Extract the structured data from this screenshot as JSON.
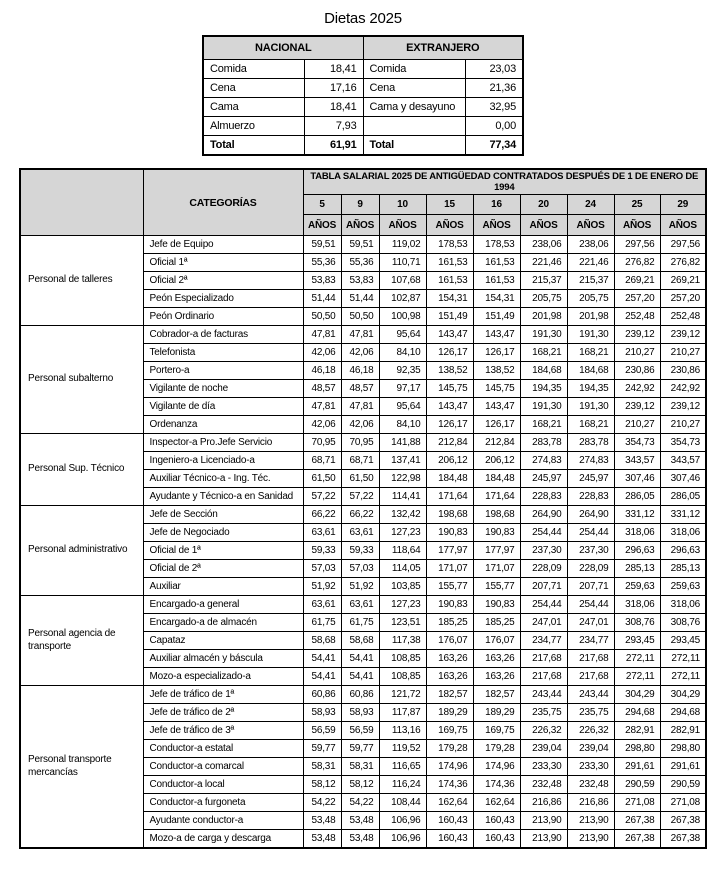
{
  "colors": {
    "header_bg": "#d6d6d6",
    "border": "#000000",
    "page_bg": "#ffffff"
  },
  "dietas": {
    "title": "Dietas 2025",
    "columns": [
      "NACIONAL",
      "EXTRANJERO"
    ],
    "rows": [
      {
        "nacional_label": "Comida",
        "nacional_value": "18,41",
        "extranjero_label": "Comida",
        "extranjero_value": "23,03"
      },
      {
        "nacional_label": "Cena",
        "nacional_value": "17,16",
        "extranjero_label": "Cena",
        "extranjero_value": "21,36"
      },
      {
        "nacional_label": "Cama",
        "nacional_value": "18,41",
        "extranjero_label": "Cama y desayuno",
        "extranjero_value": "32,95"
      },
      {
        "nacional_label": "Almuerzo",
        "nacional_value": "7,93",
        "extranjero_label": "",
        "extranjero_value": "0,00"
      }
    ],
    "total": {
      "nacional_label": "Total",
      "nacional_value": "61,91",
      "extranjero_label": "Total",
      "extranjero_value": "77,34"
    }
  },
  "salary_table": {
    "title": "TABLA SALARIAL 2025 DE ANTIGÜEDAD CONTRATADOS DESPUÉS DE 1 DE ENERO DE 1994",
    "categories_header": "CATEGORÍAS",
    "year_values": [
      "5",
      "9",
      "10",
      "15",
      "16",
      "20",
      "24",
      "25",
      "29"
    ],
    "year_label": "AÑOS",
    "groups": [
      {
        "name": "Personal de talleres",
        "rows": [
          {
            "category": "Jefe de Equipo",
            "values": [
              "59,51",
              "59,51",
              "119,02",
              "178,53",
              "178,53",
              "238,06",
              "238,06",
              "297,56",
              "297,56"
            ]
          },
          {
            "category": "Oficial 1ª",
            "values": [
              "55,36",
              "55,36",
              "110,71",
              "161,53",
              "161,53",
              "221,46",
              "221,46",
              "276,82",
              "276,82"
            ]
          },
          {
            "category": "Oficial 2ª",
            "values": [
              "53,83",
              "53,83",
              "107,68",
              "161,53",
              "161,53",
              "215,37",
              "215,37",
              "269,21",
              "269,21"
            ]
          },
          {
            "category": "Peón Especializado",
            "values": [
              "51,44",
              "51,44",
              "102,87",
              "154,31",
              "154,31",
              "205,75",
              "205,75",
              "257,20",
              "257,20"
            ]
          },
          {
            "category": "Peón Ordinario",
            "values": [
              "50,50",
              "50,50",
              "100,98",
              "151,49",
              "151,49",
              "201,98",
              "201,98",
              "252,48",
              "252,48"
            ]
          }
        ]
      },
      {
        "name": "Personal subalterno",
        "rows": [
          {
            "category": "Cobrador-a de facturas",
            "values": [
              "47,81",
              "47,81",
              "95,64",
              "143,47",
              "143,47",
              "191,30",
              "191,30",
              "239,12",
              "239,12"
            ]
          },
          {
            "category": "Telefonista",
            "values": [
              "42,06",
              "42,06",
              "84,10",
              "126,17",
              "126,17",
              "168,21",
              "168,21",
              "210,27",
              "210,27"
            ]
          },
          {
            "category": "Portero-a",
            "values": [
              "46,18",
              "46,18",
              "92,35",
              "138,52",
              "138,52",
              "184,68",
              "184,68",
              "230,86",
              "230,86"
            ]
          },
          {
            "category": "Vigilante de noche",
            "values": [
              "48,57",
              "48,57",
              "97,17",
              "145,75",
              "145,75",
              "194,35",
              "194,35",
              "242,92",
              "242,92"
            ]
          },
          {
            "category": "Vigilante de día",
            "values": [
              "47,81",
              "47,81",
              "95,64",
              "143,47",
              "143,47",
              "191,30",
              "191,30",
              "239,12",
              "239,12"
            ]
          },
          {
            "category": "Ordenanza",
            "values": [
              "42,06",
              "42,06",
              "84,10",
              "126,17",
              "126,17",
              "168,21",
              "168,21",
              "210,27",
              "210,27"
            ]
          }
        ]
      },
      {
        "name": "Personal Sup. Técnico",
        "rows": [
          {
            "category": "Inspector-a Pro.Jefe Servicio",
            "values": [
              "70,95",
              "70,95",
              "141,88",
              "212,84",
              "212,84",
              "283,78",
              "283,78",
              "354,73",
              "354,73"
            ]
          },
          {
            "category": "Ingeniero-a Licenciado-a",
            "values": [
              "68,71",
              "68,71",
              "137,41",
              "206,12",
              "206,12",
              "274,83",
              "274,83",
              "343,57",
              "343,57"
            ]
          },
          {
            "category": "Auxiliar Técnico-a - Ing. Téc.",
            "values": [
              "61,50",
              "61,50",
              "122,98",
              "184,48",
              "184,48",
              "245,97",
              "245,97",
              "307,46",
              "307,46"
            ]
          },
          {
            "category": "Ayudante y Técnico-a en Sanidad",
            "values": [
              "57,22",
              "57,22",
              "114,41",
              "171,64",
              "171,64",
              "228,83",
              "228,83",
              "286,05",
              "286,05"
            ]
          }
        ]
      },
      {
        "name": "Personal administrativo",
        "rows": [
          {
            "category": "Jefe de Sección",
            "values": [
              "66,22",
              "66,22",
              "132,42",
              "198,68",
              "198,68",
              "264,90",
              "264,90",
              "331,12",
              "331,12"
            ]
          },
          {
            "category": "Jefe de Negociado",
            "values": [
              "63,61",
              "63,61",
              "127,23",
              "190,83",
              "190,83",
              "254,44",
              "254,44",
              "318,06",
              "318,06"
            ]
          },
          {
            "category": "Oficial de 1ª",
            "values": [
              "59,33",
              "59,33",
              "118,64",
              "177,97",
              "177,97",
              "237,30",
              "237,30",
              "296,63",
              "296,63"
            ]
          },
          {
            "category": "Oficial de 2ª",
            "values": [
              "57,03",
              "57,03",
              "114,05",
              "171,07",
              "171,07",
              "228,09",
              "228,09",
              "285,13",
              "285,13"
            ]
          },
          {
            "category": "Auxiliar",
            "values": [
              "51,92",
              "51,92",
              "103,85",
              "155,77",
              "155,77",
              "207,71",
              "207,71",
              "259,63",
              "259,63"
            ]
          }
        ]
      },
      {
        "name": "Personal agencia de transporte",
        "rows": [
          {
            "category": "Encargado-a general",
            "values": [
              "63,61",
              "63,61",
              "127,23",
              "190,83",
              "190,83",
              "254,44",
              "254,44",
              "318,06",
              "318,06"
            ]
          },
          {
            "category": "Encargado-a de almacén",
            "values": [
              "61,75",
              "61,75",
              "123,51",
              "185,25",
              "185,25",
              "247,01",
              "247,01",
              "308,76",
              "308,76"
            ]
          },
          {
            "category": "Capataz",
            "values": [
              "58,68",
              "58,68",
              "117,38",
              "176,07",
              "176,07",
              "234,77",
              "234,77",
              "293,45",
              "293,45"
            ]
          },
          {
            "category": "Auxiliar almacén y báscula",
            "values": [
              "54,41",
              "54,41",
              "108,85",
              "163,26",
              "163,26",
              "217,68",
              "217,68",
              "272,11",
              "272,11"
            ]
          },
          {
            "category": "Mozo-a especializado-a",
            "values": [
              "54,41",
              "54,41",
              "108,85",
              "163,26",
              "163,26",
              "217,68",
              "217,68",
              "272,11",
              "272,11"
            ]
          }
        ]
      },
      {
        "name": "Personal transporte mercancías",
        "rows": [
          {
            "category": "Jefe de tráfico de 1ª",
            "values": [
              "60,86",
              "60,86",
              "121,72",
              "182,57",
              "182,57",
              "243,44",
              "243,44",
              "304,29",
              "304,29"
            ]
          },
          {
            "category": "Jefe de tráfico de 2ª",
            "values": [
              "58,93",
              "58,93",
              "117,87",
              "189,29",
              "189,29",
              "235,75",
              "235,75",
              "294,68",
              "294,68"
            ]
          },
          {
            "category": "Jefe de tráfico de 3ª",
            "values": [
              "56,59",
              "56,59",
              "113,16",
              "169,75",
              "169,75",
              "226,32",
              "226,32",
              "282,91",
              "282,91"
            ]
          },
          {
            "category": "Conductor-a estatal",
            "values": [
              "59,77",
              "59,77",
              "119,52",
              "179,28",
              "179,28",
              "239,04",
              "239,04",
              "298,80",
              "298,80"
            ]
          },
          {
            "category": "Conductor-a comarcal",
            "values": [
              "58,31",
              "58,31",
              "116,65",
              "174,96",
              "174,96",
              "233,30",
              "233,30",
              "291,61",
              "291,61"
            ]
          },
          {
            "category": "Conductor-a local",
            "values": [
              "58,12",
              "58,12",
              "116,24",
              "174,36",
              "174,36",
              "232,48",
              "232,48",
              "290,59",
              "290,59"
            ]
          },
          {
            "category": "Conductor-a furgoneta",
            "values": [
              "54,22",
              "54,22",
              "108,44",
              "162,64",
              "162,64",
              "216,86",
              "216,86",
              "271,08",
              "271,08"
            ]
          },
          {
            "category": "Ayudante conductor-a",
            "values": [
              "53,48",
              "53,48",
              "106,96",
              "160,43",
              "160,43",
              "213,90",
              "213,90",
              "267,38",
              "267,38"
            ]
          },
          {
            "category": "Mozo-a de carga y descarga",
            "values": [
              "53,48",
              "53,48",
              "106,96",
              "160,43",
              "160,43",
              "213,90",
              "213,90",
              "267,38",
              "267,38"
            ]
          }
        ]
      }
    ]
  }
}
